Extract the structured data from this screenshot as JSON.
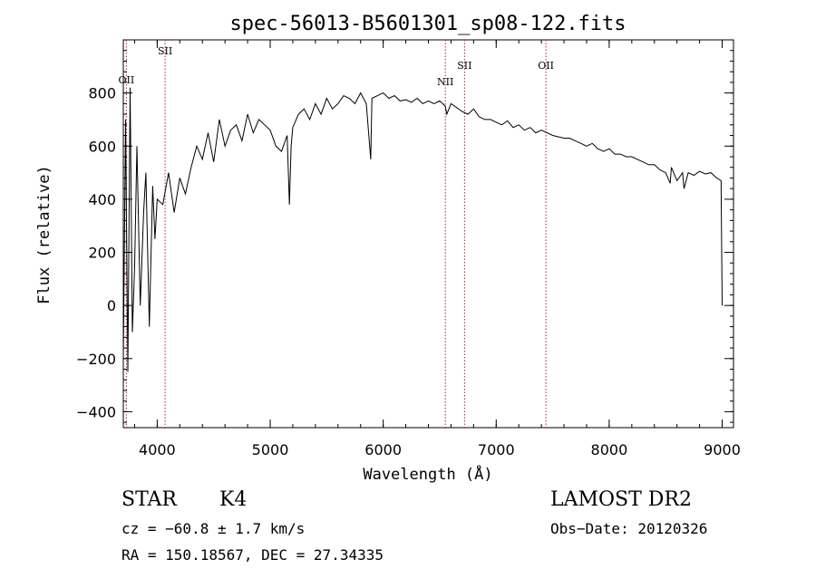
{
  "chart_data": {
    "type": "line",
    "title": "spec-56013-B5601301_sp08-122.fits",
    "xlabel": "Wavelength (Å)",
    "ylabel": "Flux (relative)",
    "xlim": [
      3700,
      9100
    ],
    "ylim": [
      -460,
      1000
    ],
    "x_ticks": [
      4000,
      5000,
      6000,
      7000,
      8000,
      9000
    ],
    "y_ticks": [
      -400,
      -200,
      0,
      200,
      400,
      600,
      800
    ],
    "grid": false,
    "series": [
      {
        "x": [
          3700,
          3720,
          3740,
          3760,
          3780,
          3800,
          3820,
          3850,
          3880,
          3900,
          3930,
          3960,
          3980,
          4000,
          4050,
          4100,
          4150,
          4200,
          4250,
          4300,
          4350,
          4400,
          4450,
          4500,
          4550,
          4600,
          4650,
          4700,
          4750,
          4800,
          4850,
          4900,
          4950,
          5000,
          5050,
          5100,
          5150,
          5170,
          5185,
          5200,
          5250,
          5300,
          5350,
          5400,
          5450,
          5500,
          5550,
          5600,
          5650,
          5700,
          5750,
          5800,
          5850,
          5890,
          5900,
          5950,
          6000,
          6050,
          6100,
          6150,
          6200,
          6250,
          6300,
          6350,
          6400,
          6450,
          6500,
          6550,
          6563,
          6600,
          6650,
          6700,
          6750,
          6800,
          6850,
          6900,
          6950,
          7000,
          7050,
          7100,
          7150,
          7200,
          7250,
          7300,
          7350,
          7400,
          7450,
          7500,
          7550,
          7600,
          7650,
          7700,
          7750,
          7800,
          7850,
          7900,
          7950,
          8000,
          8050,
          8100,
          8150,
          8200,
          8250,
          8300,
          8350,
          8400,
          8450,
          8500,
          8540,
          8550,
          8600,
          8650,
          8662,
          8700,
          8750,
          8800,
          8850,
          8900,
          8950,
          8990,
          9000
        ],
        "y": [
          -200,
          700,
          -250,
          820,
          -100,
          150,
          600,
          0,
          350,
          500,
          -80,
          450,
          250,
          400,
          380,
          500,
          350,
          480,
          420,
          520,
          600,
          550,
          650,
          540,
          700,
          600,
          660,
          680,
          620,
          720,
          650,
          700,
          680,
          660,
          600,
          580,
          640,
          380,
          600,
          670,
          720,
          740,
          700,
          760,
          720,
          780,
          740,
          760,
          790,
          780,
          760,
          800,
          760,
          550,
          780,
          790,
          800,
          780,
          790,
          770,
          775,
          765,
          780,
          760,
          770,
          760,
          770,
          750,
          720,
          760,
          745,
          730,
          720,
          740,
          710,
          700,
          700,
          690,
          680,
          695,
          670,
          680,
          660,
          670,
          650,
          660,
          650,
          640,
          635,
          630,
          630,
          620,
          610,
          600,
          610,
          590,
          580,
          590,
          570,
          570,
          560,
          560,
          550,
          540,
          530,
          530,
          510,
          500,
          460,
          520,
          470,
          500,
          440,
          500,
          490,
          505,
          495,
          500,
          480,
          470,
          0
        ]
      }
    ],
    "lines": [
      {
        "label": "OII",
        "x": 3727
      },
      {
        "label": "SII",
        "x": 4070
      },
      {
        "label": "NII",
        "x": 6550
      },
      {
        "label": "SII",
        "x": 6720
      },
      {
        "label": "OII",
        "x": 7440
      }
    ]
  },
  "info": {
    "class": "STAR",
    "subclass": "K4",
    "cz": "cz = −60.8 ± 1.7 km/s",
    "coords": "RA = 150.18567, DEC =  27.34335",
    "survey": "LAMOST DR2",
    "obs_date": "Obs−Date: 20120326"
  }
}
